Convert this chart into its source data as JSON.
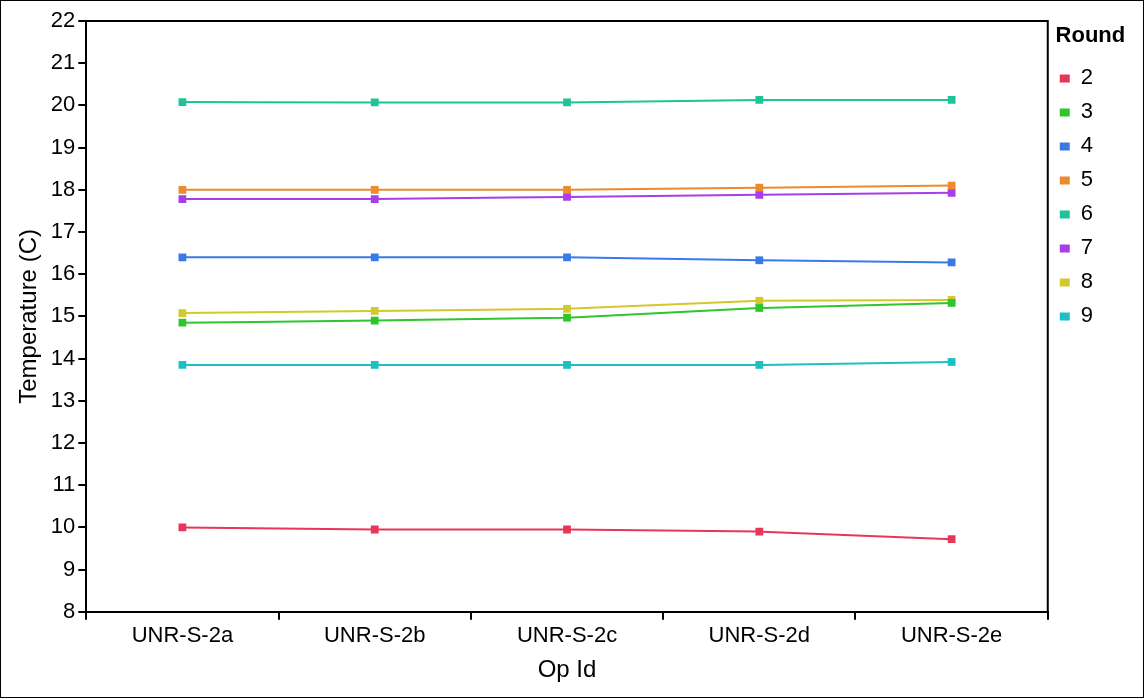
{
  "chart_data": {
    "type": "line",
    "xlabel": "Op Id",
    "ylabel": "Temperature (C)",
    "legend_title": "Round",
    "legend": "right",
    "marker": "square",
    "line_style": "solid",
    "grid": false,
    "categories": [
      "UNR-S-2a",
      "UNR-S-2b",
      "UNR-S-2c",
      "UNR-S-2d",
      "UNR-S-2e"
    ],
    "ylim": [
      8,
      22
    ],
    "yticks": [
      8,
      9,
      10,
      11,
      12,
      13,
      14,
      15,
      16,
      17,
      18,
      19,
      20,
      21,
      22
    ],
    "series": [
      {
        "name": "2",
        "color": "#e8365a",
        "values": [
          10.0,
          9.95,
          9.95,
          9.9,
          9.72
        ]
      },
      {
        "name": "3",
        "color": "#2ec52e",
        "values": [
          14.85,
          14.9,
          14.97,
          15.2,
          15.32
        ]
      },
      {
        "name": "4",
        "color": "#3a7ae8",
        "values": [
          16.4,
          16.4,
          16.4,
          16.33,
          16.28
        ]
      },
      {
        "name": "5",
        "color": "#ee8a2e",
        "values": [
          18.0,
          18.0,
          18.0,
          18.05,
          18.1
        ]
      },
      {
        "name": "6",
        "color": "#1cc497",
        "values": [
          20.08,
          20.07,
          20.07,
          20.13,
          20.13
        ]
      },
      {
        "name": "7",
        "color": "#a83ee8",
        "values": [
          17.78,
          17.78,
          17.83,
          17.88,
          17.93
        ]
      },
      {
        "name": "8",
        "color": "#d4c82c",
        "values": [
          15.08,
          15.13,
          15.18,
          15.37,
          15.39
        ]
      },
      {
        "name": "9",
        "color": "#1cbfc4",
        "values": [
          13.85,
          13.85,
          13.85,
          13.85,
          13.92
        ]
      }
    ]
  }
}
